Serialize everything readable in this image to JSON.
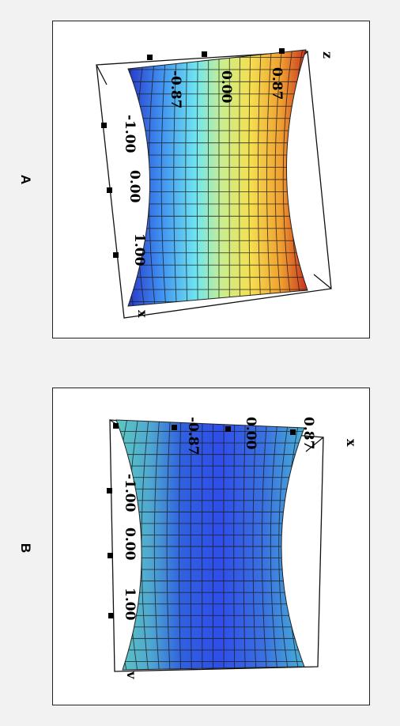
{
  "panels": [
    {
      "label": "A",
      "axis_letters": [
        "z",
        "x"
      ],
      "z_ticks": [
        "-0.87",
        "0.00",
        "0.87"
      ],
      "x_ticks": [
        "-1.00",
        "0.00",
        "1.00"
      ],
      "colormap": "jet"
    },
    {
      "label": "B",
      "axis_letters": [
        "x",
        "v"
      ],
      "z_ticks": [
        "-0.87",
        "0.00",
        "0.87"
      ],
      "x_ticks": [
        "-1.00",
        "0.00",
        "1.00"
      ],
      "colormap": "blue"
    }
  ]
}
